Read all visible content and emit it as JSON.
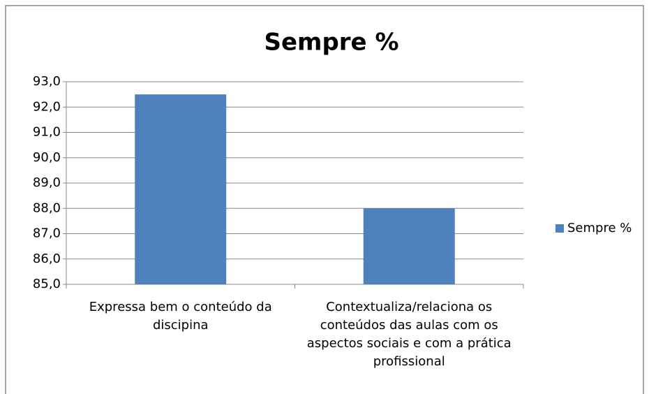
{
  "chart_data": {
    "type": "bar",
    "title": "Sempre %",
    "categories": [
      "Expressa bem o conteúdo da discipina",
      "Contextualiza/relaciona os conteúdos das aulas com os aspectos sociais e com a prática profissional"
    ],
    "series": [
      {
        "name": "Sempre %",
        "color": "#4f81bd",
        "values": [
          92.5,
          88.0
        ]
      }
    ],
    "ylim": [
      85,
      93
    ],
    "yticks": [
      {
        "value": 85,
        "label": "85,0"
      },
      {
        "value": 86,
        "label": "86,0"
      },
      {
        "value": 87,
        "label": "87,0"
      },
      {
        "value": 88,
        "label": "88,0"
      },
      {
        "value": 89,
        "label": "89,0"
      },
      {
        "value": 90,
        "label": "90,0"
      },
      {
        "value": 91,
        "label": "91,0"
      },
      {
        "value": 92,
        "label": "92,0"
      },
      {
        "value": 93,
        "label": "93,0"
      }
    ],
    "grid": true,
    "legend": "right"
  }
}
